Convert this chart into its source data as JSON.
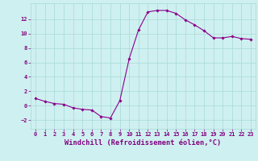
{
  "x": [
    0,
    1,
    2,
    3,
    4,
    5,
    6,
    7,
    8,
    9,
    10,
    11,
    12,
    13,
    14,
    15,
    16,
    17,
    18,
    19,
    20,
    21,
    22,
    23
  ],
  "y": [
    1.0,
    0.6,
    0.3,
    0.2,
    -0.3,
    -0.5,
    -0.6,
    -1.5,
    -1.7,
    0.7,
    6.5,
    10.5,
    13.0,
    13.2,
    13.2,
    12.8,
    11.9,
    11.2,
    10.4,
    9.4,
    9.4,
    9.6,
    9.3,
    9.2
  ],
  "line_color": "#8B008B",
  "marker": "D",
  "marker_size": 1.8,
  "background_color": "#cff0f0",
  "grid_color": "#a8d8d8",
  "xlabel": "Windchill (Refroidissement éolien,°C)",
  "ylabel": "",
  "title": "",
  "xlim": [
    -0.5,
    23.5
  ],
  "ylim": [
    -3.2,
    14.2
  ],
  "yticks": [
    -2,
    0,
    2,
    4,
    6,
    8,
    10,
    12
  ],
  "xticks": [
    0,
    1,
    2,
    3,
    4,
    5,
    6,
    7,
    8,
    9,
    10,
    11,
    12,
    13,
    14,
    15,
    16,
    17,
    18,
    19,
    20,
    21,
    22,
    23
  ],
  "tick_color": "#800080",
  "label_color": "#800080",
  "tick_fontsize": 5.0,
  "xlabel_fontsize": 6.2,
  "linewidth": 0.8
}
